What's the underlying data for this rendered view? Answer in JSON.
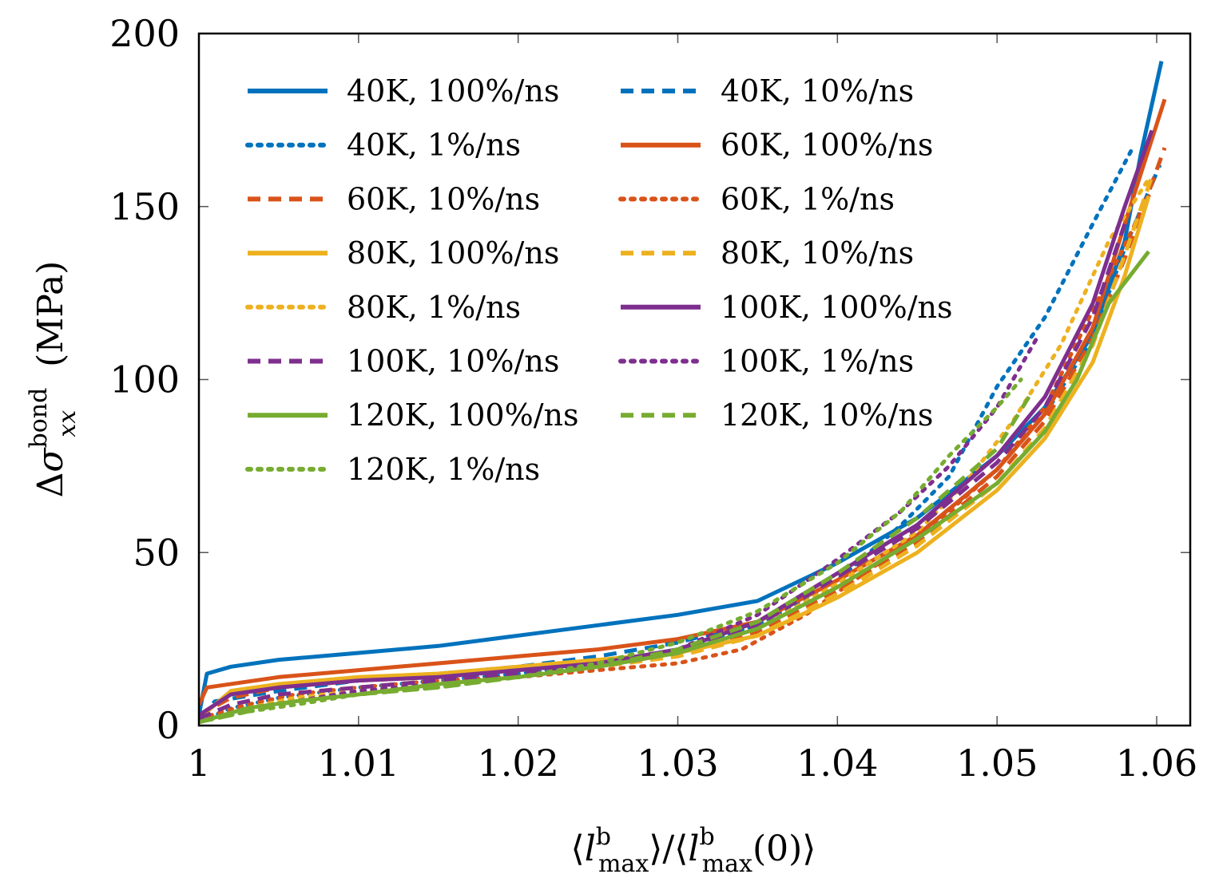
{
  "chart_data": {
    "type": "line",
    "xlabel": "⟨lᵇ_max⟩/⟨lᵇ_max(0)⟩",
    "ylabel": "Δσ_xx^bond (MPa)",
    "xlim": [
      1,
      1.062
    ],
    "ylim": [
      0,
      200
    ],
    "xticks": [
      "1",
      "1.01",
      "1.02",
      "1.03",
      "1.04",
      "1.05",
      "1.06"
    ],
    "yticks": [
      "0",
      "50",
      "100",
      "150",
      "200"
    ],
    "legend_position": "top-left",
    "series": [
      {
        "name": "40K, 100%/ns",
        "color": "#0072BD",
        "dash": "solid",
        "x": [
          1.0,
          1.0005,
          1.002,
          1.005,
          1.01,
          1.015,
          1.02,
          1.025,
          1.03,
          1.035,
          1.04,
          1.045,
          1.05,
          1.053,
          1.056,
          1.058,
          1.059,
          1.0603
        ],
        "y": [
          3,
          15,
          17,
          19,
          21,
          23,
          26,
          29,
          32,
          36,
          47,
          60,
          78,
          92,
          113,
          140,
          165,
          192
        ]
      },
      {
        "name": "40K, 10%/ns",
        "color": "#0072BD",
        "dash": "dashed",
        "x": [
          1.0,
          1.001,
          1.005,
          1.01,
          1.015,
          1.02,
          1.025,
          1.03,
          1.035,
          1.04,
          1.045,
          1.05,
          1.053,
          1.056,
          1.058,
          1.0602
        ],
        "y": [
          2,
          7,
          10,
          13,
          15,
          17,
          20,
          24,
          30,
          42,
          55,
          74,
          90,
          112,
          138,
          162
        ]
      },
      {
        "name": "40K, 1%/ns",
        "color": "#0072BD",
        "dash": "dotted",
        "x": [
          1.0,
          1.002,
          1.005,
          1.01,
          1.015,
          1.02,
          1.025,
          1.03,
          1.035,
          1.04,
          1.044,
          1.047,
          1.05,
          1.053,
          1.056,
          1.0585
        ],
        "y": [
          1,
          5,
          8,
          11,
          13,
          15,
          18,
          22,
          29,
          42,
          58,
          72,
          98,
          118,
          145,
          167
        ]
      },
      {
        "name": "60K, 100%/ns",
        "color": "#D95319",
        "dash": "solid",
        "x": [
          1.0,
          1.0005,
          1.005,
          1.01,
          1.015,
          1.02,
          1.025,
          1.03,
          1.035,
          1.04,
          1.045,
          1.05,
          1.053,
          1.056,
          1.058,
          1.0605
        ],
        "y": [
          6,
          11,
          14,
          16,
          18,
          20,
          22,
          25,
          30,
          42,
          55,
          74,
          90,
          115,
          145,
          181
        ]
      },
      {
        "name": "60K, 10%/ns",
        "color": "#D95319",
        "dash": "dashed",
        "x": [
          1.0,
          1.002,
          1.005,
          1.01,
          1.015,
          1.02,
          1.025,
          1.03,
          1.035,
          1.04,
          1.045,
          1.05,
          1.053,
          1.056,
          1.058,
          1.0605
        ],
        "y": [
          3,
          8,
          11,
          13,
          14,
          16,
          18,
          21,
          27,
          39,
          53,
          72,
          88,
          112,
          135,
          167
        ]
      },
      {
        "name": "60K, 1%/ns",
        "color": "#D95319",
        "dash": "dotted",
        "x": [
          1.0,
          1.003,
          1.006,
          1.01,
          1.015,
          1.02,
          1.025,
          1.03,
          1.034,
          1.038,
          1.042,
          1.046,
          1.05,
          1.053,
          1.056,
          1.0595
        ],
        "y": [
          2,
          6,
          9,
          11,
          13,
          14,
          16,
          18,
          22,
          32,
          45,
          58,
          74,
          92,
          120,
          153
        ]
      },
      {
        "name": "80K, 100%/ns",
        "color": "#EDB120",
        "dash": "solid",
        "x": [
          1.0,
          1.002,
          1.005,
          1.01,
          1.015,
          1.02,
          1.025,
          1.03,
          1.035,
          1.04,
          1.045,
          1.05,
          1.053,
          1.056,
          1.058,
          1.0595
        ],
        "y": [
          2,
          10,
          12,
          14,
          15,
          17,
          19,
          21,
          26,
          37,
          50,
          68,
          83,
          105,
          130,
          153
        ]
      },
      {
        "name": "80K, 10%/ns",
        "color": "#EDB120",
        "dash": "dashed",
        "x": [
          1.0,
          1.002,
          1.005,
          1.01,
          1.015,
          1.02,
          1.025,
          1.03,
          1.035,
          1.04,
          1.045,
          1.05,
          1.053,
          1.056,
          1.058,
          1.0598
        ],
        "y": [
          2,
          6,
          9,
          11,
          13,
          15,
          17,
          20,
          26,
          38,
          52,
          70,
          86,
          110,
          136,
          160
        ]
      },
      {
        "name": "80K, 1%/ns",
        "color": "#EDB120",
        "dash": "dotted",
        "x": [
          1.0,
          1.003,
          1.006,
          1.01,
          1.015,
          1.02,
          1.025,
          1.03,
          1.035,
          1.04,
          1.045,
          1.048,
          1.051,
          1.054,
          1.057,
          1.0595
        ],
        "y": [
          1,
          5,
          8,
          10,
          12,
          14,
          17,
          21,
          28,
          41,
          56,
          70,
          88,
          110,
          140,
          158
        ]
      },
      {
        "name": "100K, 100%/ns",
        "color": "#7E2F8E",
        "dash": "solid",
        "x": [
          1.0,
          1.002,
          1.005,
          1.01,
          1.015,
          1.02,
          1.025,
          1.03,
          1.035,
          1.04,
          1.045,
          1.05,
          1.053,
          1.056,
          1.058,
          1.0597
        ],
        "y": [
          3,
          9,
          11,
          13,
          14,
          16,
          18,
          22,
          30,
          44,
          58,
          78,
          95,
          122,
          150,
          172
        ]
      },
      {
        "name": "100K, 10%/ns",
        "color": "#7E2F8E",
        "dash": "dashed",
        "x": [
          1.0,
          1.002,
          1.005,
          1.01,
          1.015,
          1.02,
          1.025,
          1.03,
          1.035,
          1.04,
          1.045,
          1.05,
          1.053,
          1.056,
          1.058
        ],
        "y": [
          2,
          6,
          9,
          11,
          13,
          15,
          17,
          21,
          29,
          43,
          57,
          76,
          92,
          118,
          145
        ]
      },
      {
        "name": "100K, 1%/ns",
        "color": "#7E2F8E",
        "dash": "dotted",
        "x": [
          1.0,
          1.003,
          1.006,
          1.01,
          1.015,
          1.02,
          1.025,
          1.03,
          1.035,
          1.04,
          1.044,
          1.047,
          1.05,
          1.0525
        ],
        "y": [
          1,
          5,
          7,
          10,
          12,
          14,
          17,
          22,
          32,
          48,
          62,
          75,
          92,
          112
        ]
      },
      {
        "name": "120K, 100%/ns",
        "color": "#77AC30",
        "dash": "solid",
        "x": [
          1.0,
          1.003,
          1.006,
          1.01,
          1.015,
          1.02,
          1.025,
          1.03,
          1.035,
          1.04,
          1.045,
          1.05,
          1.053,
          1.055,
          1.057,
          1.0595
        ],
        "y": [
          1,
          5,
          7,
          9,
          12,
          14,
          17,
          21,
          28,
          40,
          54,
          70,
          85,
          100,
          122,
          137
        ]
      },
      {
        "name": "120K, 10%/ns",
        "color": "#77AC30",
        "dash": "dashed",
        "x": [
          1.0,
          1.003,
          1.006,
          1.01,
          1.015,
          1.02,
          1.025,
          1.03,
          1.035,
          1.04,
          1.045,
          1.05,
          1.052
        ],
        "y": [
          1,
          4,
          7,
          9,
          11,
          14,
          17,
          22,
          30,
          44,
          60,
          80,
          95
        ]
      },
      {
        "name": "120K, 1%/ns",
        "color": "#77AC30",
        "dash": "dotted",
        "x": [
          1.0,
          1.003,
          1.006,
          1.01,
          1.015,
          1.02,
          1.025,
          1.03,
          1.035,
          1.04,
          1.044,
          1.047,
          1.05,
          1.0515
        ],
        "y": [
          1,
          4,
          6,
          9,
          11,
          14,
          18,
          24,
          33,
          47,
          62,
          78,
          92,
          100
        ]
      }
    ]
  }
}
